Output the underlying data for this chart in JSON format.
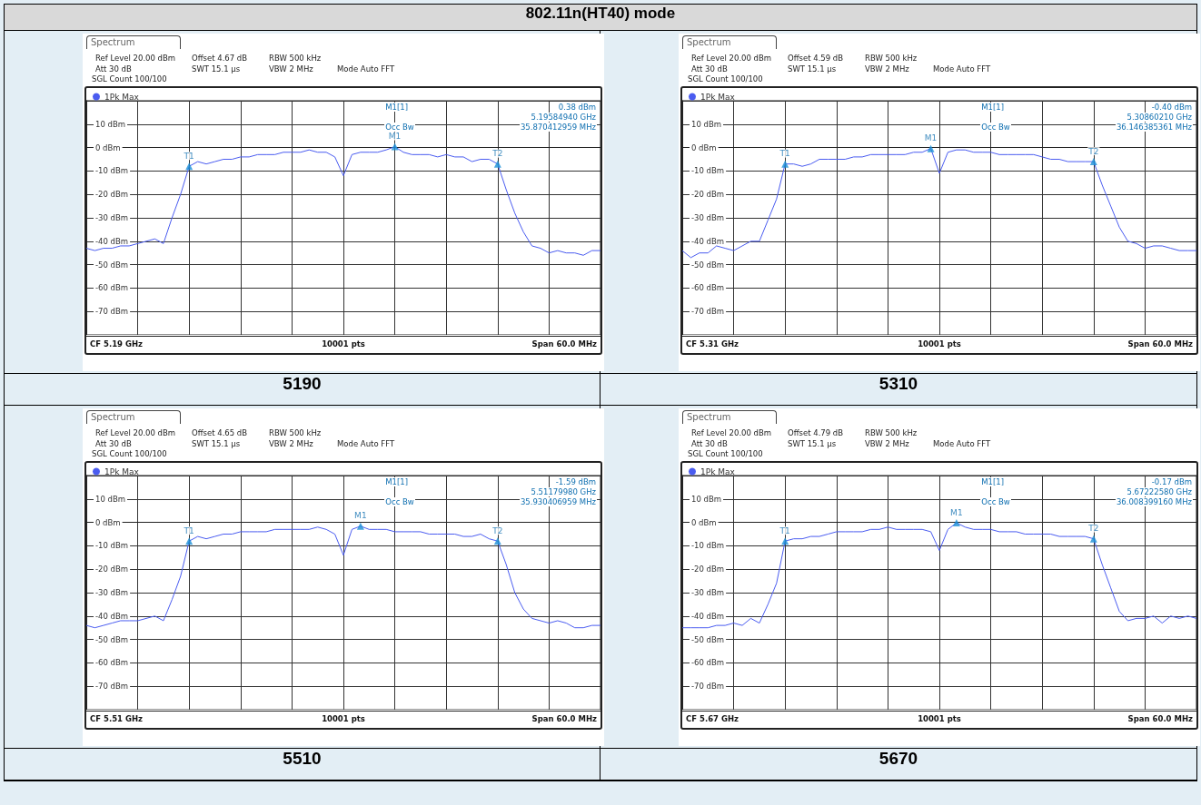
{
  "chart_data": [
    {
      "type": "line",
      "title": "802.11n(HT40) mode",
      "xlabel": "5190",
      "legend": "top left",
      "grid": true,
      "marker": "none",
      "line_style": "solid",
      "tick_labels": "y",
      "categories": [
        null,
        null,
        null,
        null,
        null,
        null,
        null,
        null,
        null,
        null,
        null,
        null,
        null,
        null,
        null,
        null,
        null,
        null,
        null,
        null,
        null,
        null,
        null,
        null,
        null,
        null,
        null,
        null,
        null,
        null,
        null,
        null,
        null,
        null,
        null,
        null,
        null,
        null,
        null,
        null,
        null,
        null,
        null,
        null,
        null,
        null,
        null,
        null,
        null,
        null,
        null,
        null,
        null,
        null,
        null,
        null,
        null,
        null,
        null,
        null,
        null
      ],
      "ylim": [
        -80,
        20
      ],
      "yticks": [
        {
          "value": -80,
          "label": null
        },
        {
          "value": -70,
          "label": "-70 dBm"
        },
        {
          "value": -60,
          "label": "-60 dBm"
        },
        {
          "value": -50,
          "label": "-50 dBm"
        },
        {
          "value": -40,
          "label": "-40 dBm"
        },
        {
          "value": -30,
          "label": "-30 dBm"
        },
        {
          "value": -20,
          "label": "-20 dBm"
        },
        {
          "value": -10,
          "label": "-10 dBm"
        },
        {
          "value": 0,
          "label": "0 dBm"
        },
        {
          "value": 10,
          "label": "10 dBm"
        },
        {
          "value": 20,
          "label": null
        }
      ],
      "series": [
        {
          "name": "1Pk Max",
          "color": "#4a5cf0",
          "values": [
            -43,
            -44,
            -43,
            -43,
            -42,
            -42,
            -41,
            -40,
            -39,
            -41,
            -30,
            -20,
            -8,
            -6,
            -7,
            -6,
            -5,
            -5,
            -4,
            -4,
            -3,
            -3,
            -3,
            -2,
            -2,
            -2,
            -1,
            -2,
            -2,
            -4,
            -12,
            -3,
            -2,
            -2,
            -2,
            -1,
            0.38,
            -2,
            -3,
            -3,
            -3,
            -4,
            -3,
            -4,
            -4,
            -6,
            -5,
            -5,
            -7,
            -18,
            -28,
            -36,
            -42,
            -43,
            -45,
            -44,
            -45,
            -45,
            -46,
            -44,
            -44
          ]
        },
        {
          "type": "scatter",
          "marker": "triangle",
          "color": "#1a8fd6",
          "values": [
            null,
            null,
            null,
            null,
            null,
            null,
            null,
            null,
            null,
            null,
            null,
            null,
            -8,
            null,
            null,
            null,
            null,
            null,
            null,
            null,
            null,
            null,
            null,
            null,
            null,
            null,
            null,
            null,
            null,
            null,
            null,
            null,
            null,
            null,
            null,
            null,
            0.38,
            null,
            null,
            null,
            null,
            null,
            null,
            null,
            null,
            null,
            null,
            null,
            -7,
            null,
            null,
            null,
            null,
            null,
            null,
            null,
            null,
            null,
            null,
            null,
            null
          ],
          "value_labels": [
            null,
            null,
            null,
            null,
            null,
            null,
            null,
            null,
            null,
            null,
            null,
            null,
            "T1",
            null,
            null,
            null,
            null,
            null,
            null,
            null,
            null,
            null,
            null,
            null,
            null,
            null,
            null,
            null,
            null,
            null,
            null,
            null,
            null,
            null,
            null,
            null,
            "M1",
            null,
            null,
            null,
            null,
            null,
            null,
            null,
            null,
            null,
            null,
            null,
            "T2",
            null,
            null,
            null,
            null,
            null,
            null,
            null,
            null,
            null,
            null,
            null,
            null
          ]
        }
      ],
      "annotations": [
        "Spectrum",
        "Ref Level 20.00 dBm",
        "Offset 4.67 dB",
        "RBW 500 kHz",
        "Att 30 dB",
        "SWT 15.1 µs",
        "VBW 2 MHz",
        "Mode Auto FFT",
        "SGL Count 100/100",
        "M1[1]",
        "0.38 dBm",
        "5.19584940 GHz",
        "Occ Bw",
        "35.870412959 MHz",
        "CF 5.19 GHz",
        "10001 pts",
        "Span 60.0 MHz"
      ]
    },
    {
      "type": "line",
      "xlabel": "5310",
      "legend": "top left",
      "grid": true,
      "marker": "none",
      "line_style": "solid",
      "tick_labels": "y",
      "categories": [
        null,
        null,
        null,
        null,
        null,
        null,
        null,
        null,
        null,
        null,
        null,
        null,
        null,
        null,
        null,
        null,
        null,
        null,
        null,
        null,
        null,
        null,
        null,
        null,
        null,
        null,
        null,
        null,
        null,
        null,
        null,
        null,
        null,
        null,
        null,
        null,
        null,
        null,
        null,
        null,
        null,
        null,
        null,
        null,
        null,
        null,
        null,
        null,
        null,
        null,
        null,
        null,
        null,
        null,
        null,
        null,
        null,
        null,
        null,
        null,
        null
      ],
      "ylim": [
        -80,
        20
      ],
      "yticks": [
        {
          "value": -80,
          "label": null
        },
        {
          "value": -70,
          "label": "-70 dBm"
        },
        {
          "value": -60,
          "label": "-60 dBm"
        },
        {
          "value": -50,
          "label": "-50 dBm"
        },
        {
          "value": -40,
          "label": "-40 dBm"
        },
        {
          "value": -30,
          "label": "-30 dBm"
        },
        {
          "value": -20,
          "label": "-20 dBm"
        },
        {
          "value": -10,
          "label": "-10 dBm"
        },
        {
          "value": 0,
          "label": "0 dBm"
        },
        {
          "value": 10,
          "label": "10 dBm"
        },
        {
          "value": 20,
          "label": null
        }
      ],
      "series": [
        {
          "name": "1Pk Max",
          "color": "#4a5cf0",
          "values": [
            -44,
            -47,
            -45,
            -45,
            -42,
            -43,
            -44,
            -42,
            -40,
            -40,
            -31,
            -22,
            -7,
            -7,
            -8,
            -7,
            -5,
            -5,
            -5,
            -5,
            -4,
            -4,
            -3,
            -3,
            -3,
            -3,
            -3,
            -2,
            -2,
            -0.4,
            -11,
            -2,
            -1,
            -1,
            -2,
            -2,
            -2,
            -3,
            -3,
            -3,
            -3,
            -3,
            -4,
            -5,
            -5,
            -6,
            -6,
            -6,
            -6,
            -16,
            -25,
            -34,
            -40,
            -41,
            -43,
            -42,
            -42,
            -43,
            -44,
            -44,
            -44
          ]
        },
        {
          "type": "scatter",
          "marker": "triangle",
          "color": "#1a8fd6",
          "values": [
            null,
            null,
            null,
            null,
            null,
            null,
            null,
            null,
            null,
            null,
            null,
            null,
            -7,
            null,
            null,
            null,
            null,
            null,
            null,
            null,
            null,
            null,
            null,
            null,
            null,
            null,
            null,
            null,
            null,
            -0.4,
            null,
            null,
            null,
            null,
            null,
            null,
            null,
            null,
            null,
            null,
            null,
            null,
            null,
            null,
            null,
            null,
            null,
            null,
            -6,
            null,
            null,
            null,
            null,
            null,
            null,
            null,
            null,
            null,
            null,
            null,
            null
          ],
          "value_labels": [
            null,
            null,
            null,
            null,
            null,
            null,
            null,
            null,
            null,
            null,
            null,
            null,
            "T1",
            null,
            null,
            null,
            null,
            null,
            null,
            null,
            null,
            null,
            null,
            null,
            null,
            null,
            null,
            null,
            null,
            "M1",
            null,
            null,
            null,
            null,
            null,
            null,
            null,
            null,
            null,
            null,
            null,
            null,
            null,
            null,
            null,
            null,
            null,
            null,
            "T2",
            null,
            null,
            null,
            null,
            null,
            null,
            null,
            null,
            null,
            null,
            null,
            null
          ]
        }
      ],
      "annotations": [
        "Spectrum",
        "Ref Level 20.00 dBm",
        "Offset 4.59 dB",
        "RBW 500 kHz",
        "Att 30 dB",
        "SWT 15.1 µs",
        "VBW 2 MHz",
        "Mode Auto FFT",
        "SGL Count 100/100",
        "M1[1]",
        "-0.40 dBm",
        "5.30860210 GHz",
        "Occ Bw",
        "36.146385361 MHz",
        "CF 5.31 GHz",
        "10001 pts",
        "Span 60.0 MHz"
      ]
    },
    {
      "type": "line",
      "xlabel": "5510",
      "legend": "top left",
      "grid": true,
      "marker": "none",
      "line_style": "solid",
      "tick_labels": "y",
      "categories": [
        null,
        null,
        null,
        null,
        null,
        null,
        null,
        null,
        null,
        null,
        null,
        null,
        null,
        null,
        null,
        null,
        null,
        null,
        null,
        null,
        null,
        null,
        null,
        null,
        null,
        null,
        null,
        null,
        null,
        null,
        null,
        null,
        null,
        null,
        null,
        null,
        null,
        null,
        null,
        null,
        null,
        null,
        null,
        null,
        null,
        null,
        null,
        null,
        null,
        null,
        null,
        null,
        null,
        null,
        null,
        null,
        null,
        null,
        null,
        null,
        null
      ],
      "ylim": [
        -80,
        20
      ],
      "yticks": [
        {
          "value": -80,
          "label": null
        },
        {
          "value": -70,
          "label": "-70 dBm"
        },
        {
          "value": -60,
          "label": "-60 dBm"
        },
        {
          "value": -50,
          "label": "-50 dBm"
        },
        {
          "value": -40,
          "label": "-40 dBm"
        },
        {
          "value": -30,
          "label": "-30 dBm"
        },
        {
          "value": -20,
          "label": "-20 dBm"
        },
        {
          "value": -10,
          "label": "-10 dBm"
        },
        {
          "value": 0,
          "label": "0 dBm"
        },
        {
          "value": 10,
          "label": "10 dBm"
        },
        {
          "value": 20,
          "label": null
        }
      ],
      "series": [
        {
          "name": "1Pk Max",
          "color": "#4a5cf0",
          "values": [
            -44,
            -45,
            -44,
            -43,
            -42,
            -42,
            -42,
            -41,
            -40,
            -42,
            -33,
            -23,
            -8,
            -6,
            -7,
            -6,
            -5,
            -5,
            -4,
            -4,
            -4,
            -4,
            -3,
            -3,
            -3,
            -3,
            -3,
            -2,
            -3,
            -5,
            -14,
            -3,
            -1.59,
            -3,
            -3,
            -3,
            -4,
            -4,
            -4,
            -4,
            -5,
            -5,
            -5,
            -5,
            -6,
            -6,
            -5,
            -7,
            -8,
            -18,
            -30,
            -37,
            -41,
            -42,
            -43,
            -42,
            -43,
            -45,
            -45,
            -44,
            -44
          ]
        },
        {
          "type": "scatter",
          "marker": "triangle",
          "color": "#1a8fd6",
          "values": [
            null,
            null,
            null,
            null,
            null,
            null,
            null,
            null,
            null,
            null,
            null,
            null,
            -8,
            null,
            null,
            null,
            null,
            null,
            null,
            null,
            null,
            null,
            null,
            null,
            null,
            null,
            null,
            null,
            null,
            null,
            null,
            null,
            -1.59,
            null,
            null,
            null,
            null,
            null,
            null,
            null,
            null,
            null,
            null,
            null,
            null,
            null,
            null,
            null,
            -8,
            null,
            null,
            null,
            null,
            null,
            null,
            null,
            null,
            null,
            null,
            null,
            null
          ],
          "value_labels": [
            null,
            null,
            null,
            null,
            null,
            null,
            null,
            null,
            null,
            null,
            null,
            null,
            "T1",
            null,
            null,
            null,
            null,
            null,
            null,
            null,
            null,
            null,
            null,
            null,
            null,
            null,
            null,
            null,
            null,
            null,
            null,
            null,
            "M1",
            null,
            null,
            null,
            null,
            null,
            null,
            null,
            null,
            null,
            null,
            null,
            null,
            null,
            null,
            null,
            "T2",
            null,
            null,
            null,
            null,
            null,
            null,
            null,
            null,
            null,
            null,
            null,
            null
          ]
        }
      ],
      "annotations": [
        "Spectrum",
        "Ref Level 20.00 dBm",
        "Offset 4.65 dB",
        "RBW 500 kHz",
        "Att 30 dB",
        "SWT 15.1 µs",
        "VBW 2 MHz",
        "Mode Auto FFT",
        "SGL Count 100/100",
        "M1[1]",
        "-1.59 dBm",
        "5.51179980 GHz",
        "Occ Bw",
        "35.930406959 MHz",
        "CF 5.51 GHz",
        "10001 pts",
        "Span 60.0 MHz"
      ]
    },
    {
      "type": "line",
      "xlabel": "5670",
      "legend": "top left",
      "grid": true,
      "marker": "none",
      "line_style": "solid",
      "tick_labels": "y",
      "categories": [
        null,
        null,
        null,
        null,
        null,
        null,
        null,
        null,
        null,
        null,
        null,
        null,
        null,
        null,
        null,
        null,
        null,
        null,
        null,
        null,
        null,
        null,
        null,
        null,
        null,
        null,
        null,
        null,
        null,
        null,
        null,
        null,
        null,
        null,
        null,
        null,
        null,
        null,
        null,
        null,
        null,
        null,
        null,
        null,
        null,
        null,
        null,
        null,
        null,
        null,
        null,
        null,
        null,
        null,
        null,
        null,
        null,
        null,
        null,
        null,
        null
      ],
      "ylim": [
        -80,
        20
      ],
      "yticks": [
        {
          "value": -80,
          "label": null
        },
        {
          "value": -70,
          "label": "-70 dBm"
        },
        {
          "value": -60,
          "label": "-60 dBm"
        },
        {
          "value": -50,
          "label": "-50 dBm"
        },
        {
          "value": -40,
          "label": "-40 dBm"
        },
        {
          "value": -30,
          "label": "-30 dBm"
        },
        {
          "value": -20,
          "label": "-20 dBm"
        },
        {
          "value": -10,
          "label": "-10 dBm"
        },
        {
          "value": 0,
          "label": "0 dBm"
        },
        {
          "value": 10,
          "label": "10 dBm"
        },
        {
          "value": 20,
          "label": null
        }
      ],
      "series": [
        {
          "name": "1Pk Max",
          "color": "#4a5cf0",
          "values": [
            -45,
            -45,
            -45,
            -45,
            -44,
            -44,
            -43,
            -44,
            -41,
            -43,
            -35,
            -26,
            -8,
            -7,
            -7,
            -6,
            -6,
            -5,
            -4,
            -4,
            -4,
            -4,
            -3,
            -3,
            -2,
            -3,
            -3,
            -3,
            -3,
            -4,
            -12,
            -3,
            -0.17,
            -2,
            -3,
            -3,
            -3,
            -4,
            -4,
            -4,
            -5,
            -5,
            -5,
            -5,
            -6,
            -6,
            -6,
            -6,
            -7,
            -18,
            -28,
            -38,
            -42,
            -41,
            -41,
            -40,
            -43,
            -40,
            -41,
            -40,
            -41
          ]
        },
        {
          "type": "scatter",
          "marker": "triangle",
          "color": "#1a8fd6",
          "values": [
            null,
            null,
            null,
            null,
            null,
            null,
            null,
            null,
            null,
            null,
            null,
            null,
            -8,
            null,
            null,
            null,
            null,
            null,
            null,
            null,
            null,
            null,
            null,
            null,
            null,
            null,
            null,
            null,
            null,
            null,
            null,
            null,
            -0.17,
            null,
            null,
            null,
            null,
            null,
            null,
            null,
            null,
            null,
            null,
            null,
            null,
            null,
            null,
            null,
            -7,
            null,
            null,
            null,
            null,
            null,
            null,
            null,
            null,
            null,
            null,
            null,
            null
          ],
          "value_labels": [
            null,
            null,
            null,
            null,
            null,
            null,
            null,
            null,
            null,
            null,
            null,
            null,
            "T1",
            null,
            null,
            null,
            null,
            null,
            null,
            null,
            null,
            null,
            null,
            null,
            null,
            null,
            null,
            null,
            null,
            null,
            null,
            null,
            "M1",
            null,
            null,
            null,
            null,
            null,
            null,
            null,
            null,
            null,
            null,
            null,
            null,
            null,
            null,
            null,
            "T2",
            null,
            null,
            null,
            null,
            null,
            null,
            null,
            null,
            null,
            null,
            null,
            null
          ]
        }
      ],
      "annotations": [
        "Spectrum",
        "Ref Level 20.00 dBm",
        "Offset 4.79 dB",
        "RBW 500 kHz",
        "Att 30 dB",
        "SWT 15.1 µs",
        "VBW 2 MHz",
        "Mode Auto FFT",
        "SGL Count 100/100",
        "M1[1]",
        "-0.17 dBm",
        "5.67222580 GHz",
        "Occ Bw",
        "36.008399160 MHz",
        "CF 5.67 GHz",
        "10001 pts",
        "Span 60.0 MHz"
      ]
    }
  ]
}
